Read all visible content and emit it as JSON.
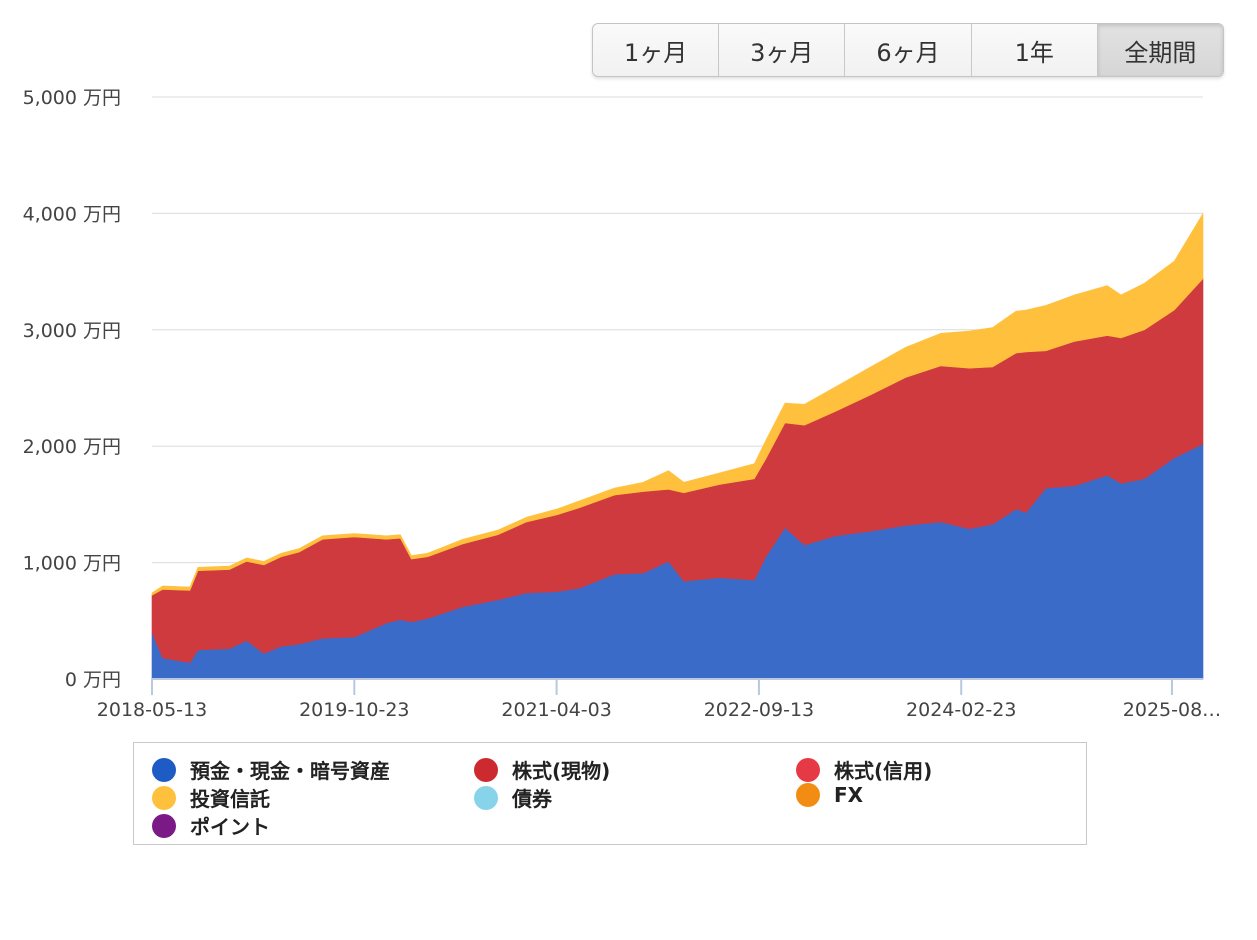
{
  "range_buttons": [
    {
      "label": "1ヶ月",
      "active": false
    },
    {
      "label": "3ヶ月",
      "active": false
    },
    {
      "label": "6ヶ月",
      "active": false
    },
    {
      "label": "1年",
      "active": false
    },
    {
      "label": "全期間",
      "active": true
    }
  ],
  "chart_data": {
    "type": "area",
    "stacked": true,
    "unit": "万円",
    "ylim": [
      0,
      5000
    ],
    "yticks": [
      0,
      1000,
      2000,
      3000,
      4000,
      5000
    ],
    "ytick_labels": [
      "0 万円",
      "1,000 万円",
      "2,000 万円",
      "3,000 万円",
      "4,000 万円",
      "5,000 万円"
    ],
    "xlim": [
      "2018-05-13",
      "2025-11-15"
    ],
    "xticks": [
      "2018-05-13",
      "2019-10-23",
      "2021-04-03",
      "2022-09-13",
      "2024-02-23",
      "2025-08-26"
    ],
    "xtick_labels": [
      "2018-05-13",
      "2019-10-23",
      "2021-04-03",
      "2022-09-13",
      "2024-02-23",
      "2025-08…"
    ],
    "grid": true,
    "legend_position": "bottom",
    "x": [
      "2018-05-13",
      "2018-06-10",
      "2018-08-20",
      "2018-09-10",
      "2018-12-01",
      "2019-01-15",
      "2019-03-01",
      "2019-04-15",
      "2019-06-01",
      "2019-08-01",
      "2019-10-23",
      "2020-01-15",
      "2020-02-20",
      "2020-03-20",
      "2020-05-01",
      "2020-08-01",
      "2020-11-01",
      "2021-01-15",
      "2021-04-03",
      "2021-06-01",
      "2021-09-01",
      "2021-11-15",
      "2022-01-20",
      "2022-03-01",
      "2022-06-01",
      "2022-09-01",
      "2022-10-01",
      "2022-11-20",
      "2023-01-10",
      "2023-04-01",
      "2023-07-01",
      "2023-10-01",
      "2024-01-01",
      "2024-03-15",
      "2024-05-15",
      "2024-07-15",
      "2024-08-10",
      "2024-10-01",
      "2024-12-15",
      "2025-03-10",
      "2025-04-15",
      "2025-06-15",
      "2025-09-01",
      "2025-11-15"
    ],
    "series": [
      {
        "name": "預金・現金・暗号資産",
        "color": "#3a6bc8",
        "values": [
          400,
          180,
          140,
          250,
          260,
          330,
          220,
          280,
          300,
          350,
          360,
          480,
          510,
          490,
          520,
          620,
          680,
          740,
          750,
          780,
          900,
          910,
          1010,
          840,
          870,
          850,
          1050,
          1300,
          1150,
          1230,
          1270,
          1320,
          1350,
          1290,
          1330,
          1460,
          1430,
          1640,
          1660,
          1750,
          1680,
          1720,
          1900,
          2020
        ]
      },
      {
        "name": "株式(現物)",
        "color": "#cf3a3f",
        "values": [
          320,
          590,
          620,
          680,
          680,
          680,
          760,
          770,
          790,
          850,
          860,
          720,
          700,
          540,
          530,
          540,
          560,
          610,
          660,
          690,
          680,
          700,
          620,
          760,
          800,
          870,
          840,
          900,
          1030,
          1070,
          1170,
          1270,
          1340,
          1380,
          1350,
          1340,
          1380,
          1180,
          1240,
          1200,
          1250,
          1280,
          1270,
          1420
        ]
      },
      {
        "name": "株式(信用)",
        "color": "#e53a45",
        "values": [
          0,
          0,
          0,
          0,
          0,
          0,
          0,
          0,
          0,
          0,
          0,
          0,
          0,
          0,
          0,
          0,
          0,
          0,
          0,
          0,
          0,
          0,
          0,
          0,
          0,
          0,
          0,
          0,
          0,
          0,
          0,
          0,
          0,
          0,
          0,
          0,
          0,
          0,
          0,
          0,
          0,
          0,
          0,
          0
        ]
      },
      {
        "name": "投資信託",
        "color": "#ffc13d",
        "values": [
          20,
          30,
          30,
          30,
          30,
          30,
          30,
          30,
          30,
          30,
          30,
          30,
          30,
          30,
          30,
          40,
          40,
          40,
          50,
          60,
          60,
          80,
          160,
          90,
          100,
          130,
          160,
          170,
          180,
          210,
          240,
          260,
          280,
          320,
          340,
          360,
          360,
          390,
          400,
          430,
          370,
          400,
          420,
          560
        ]
      },
      {
        "name": "債券",
        "color": "#86d3ea",
        "values": [
          0,
          0,
          0,
          0,
          0,
          0,
          0,
          0,
          0,
          0,
          0,
          0,
          0,
          0,
          0,
          0,
          0,
          0,
          0,
          0,
          0,
          0,
          0,
          0,
          0,
          0,
          0,
          0,
          0,
          0,
          0,
          0,
          0,
          0,
          0,
          0,
          0,
          0,
          0,
          0,
          0,
          0,
          0,
          0
        ]
      },
      {
        "name": "FX",
        "color": "#f28c13",
        "values": [
          0,
          0,
          0,
          0,
          0,
          0,
          0,
          0,
          0,
          0,
          0,
          0,
          0,
          0,
          0,
          0,
          0,
          0,
          0,
          0,
          0,
          0,
          0,
          0,
          0,
          0,
          0,
          0,
          0,
          0,
          0,
          0,
          0,
          0,
          0,
          0,
          0,
          0,
          0,
          0,
          0,
          0,
          0,
          0
        ]
      },
      {
        "name": "ポイント",
        "color": "#7b1a86",
        "values": [
          0,
          0,
          0,
          0,
          0,
          0,
          0,
          0,
          0,
          0,
          0,
          0,
          0,
          0,
          0,
          0,
          0,
          0,
          0,
          0,
          0,
          0,
          0,
          0,
          0,
          0,
          0,
          0,
          0,
          0,
          0,
          0,
          0,
          0,
          0,
          0,
          0,
          0,
          0,
          0,
          0,
          0,
          0,
          0
        ]
      }
    ]
  }
}
